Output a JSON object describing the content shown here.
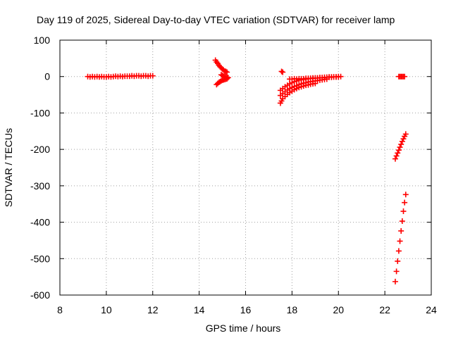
{
  "chart_data": {
    "type": "scatter",
    "title": "Day 119 of 2025, Sidereal Day-to-day VTEC variation (SDTVAR) for receiver lamp",
    "xlabel": "GPS time / hours",
    "ylabel": "SDTVAR / TECUs",
    "xlim": [
      8,
      24
    ],
    "ylim": [
      -600,
      100
    ],
    "xticks": [
      8,
      10,
      12,
      14,
      16,
      18,
      20,
      22,
      24
    ],
    "yticks": [
      100,
      0,
      -100,
      -200,
      -300,
      -400,
      -500,
      -600
    ],
    "grid": true,
    "marker": "plus",
    "series": [
      {
        "name": "SDTVAR",
        "color": "#ff0000",
        "points": [
          [
            9.2,
            0
          ],
          [
            9.3,
            -1
          ],
          [
            9.4,
            0
          ],
          [
            9.5,
            -1
          ],
          [
            9.6,
            0
          ],
          [
            9.7,
            -1
          ],
          [
            9.8,
            0
          ],
          [
            9.9,
            -1
          ],
          [
            10.0,
            -1
          ],
          [
            10.1,
            0
          ],
          [
            10.2,
            -1
          ],
          [
            10.3,
            0
          ],
          [
            10.4,
            1
          ],
          [
            10.5,
            0
          ],
          [
            10.6,
            1
          ],
          [
            10.7,
            0
          ],
          [
            10.8,
            1
          ],
          [
            10.9,
            1
          ],
          [
            11.0,
            1
          ],
          [
            11.1,
            2
          ],
          [
            11.2,
            1
          ],
          [
            11.3,
            2
          ],
          [
            11.4,
            2
          ],
          [
            11.5,
            1
          ],
          [
            11.6,
            2
          ],
          [
            11.7,
            2
          ],
          [
            11.8,
            1
          ],
          [
            11.9,
            2
          ],
          [
            12.0,
            2
          ],
          [
            14.7,
            45
          ],
          [
            14.75,
            40
          ],
          [
            14.8,
            36
          ],
          [
            14.85,
            31
          ],
          [
            14.9,
            27
          ],
          [
            14.95,
            24
          ],
          [
            15.0,
            21
          ],
          [
            15.05,
            18
          ],
          [
            15.1,
            15
          ],
          [
            15.15,
            14
          ],
          [
            15.2,
            12
          ],
          [
            14.75,
            -22
          ],
          [
            14.8,
            -19
          ],
          [
            14.85,
            -16
          ],
          [
            14.9,
            -14
          ],
          [
            14.95,
            -12
          ],
          [
            15.0,
            -10
          ],
          [
            15.05,
            -9
          ],
          [
            15.1,
            -8
          ],
          [
            15.15,
            -7
          ],
          [
            15.2,
            -6
          ],
          [
            14.95,
            5
          ],
          [
            15.0,
            3
          ],
          [
            15.05,
            1
          ],
          [
            15.1,
            0
          ],
          [
            15.15,
            -1
          ],
          [
            15.2,
            -2
          ],
          [
            15.25,
            -3
          ],
          [
            17.55,
            14
          ],
          [
            17.6,
            12
          ],
          [
            17.5,
            -73
          ],
          [
            17.55,
            -67
          ],
          [
            17.6,
            -61
          ],
          [
            17.7,
            -55
          ],
          [
            17.8,
            -49
          ],
          [
            17.9,
            -44
          ],
          [
            18.0,
            -40
          ],
          [
            18.1,
            -36
          ],
          [
            18.2,
            -33
          ],
          [
            18.3,
            -30
          ],
          [
            18.4,
            -28
          ],
          [
            18.5,
            -26
          ],
          [
            18.6,
            -24
          ],
          [
            18.7,
            -23
          ],
          [
            18.8,
            -21
          ],
          [
            18.9,
            -20
          ],
          [
            19.0,
            -19
          ],
          [
            17.5,
            -52
          ],
          [
            17.6,
            -47
          ],
          [
            17.7,
            -42
          ],
          [
            17.8,
            -37
          ],
          [
            17.9,
            -33
          ],
          [
            18.0,
            -30
          ],
          [
            18.1,
            -27
          ],
          [
            18.2,
            -25
          ],
          [
            18.3,
            -22
          ],
          [
            18.4,
            -20
          ],
          [
            18.5,
            -18
          ],
          [
            18.6,
            -17
          ],
          [
            18.7,
            -15
          ],
          [
            18.8,
            -14
          ],
          [
            18.9,
            -13
          ],
          [
            19.0,
            -12
          ],
          [
            19.1,
            -11
          ],
          [
            19.2,
            -10
          ],
          [
            19.3,
            -9
          ],
          [
            19.4,
            -8
          ],
          [
            19.5,
            -7
          ],
          [
            17.5,
            -38
          ],
          [
            17.6,
            -33
          ],
          [
            17.7,
            -28
          ],
          [
            17.8,
            -24
          ],
          [
            17.9,
            -20
          ],
          [
            18.0,
            -17
          ],
          [
            18.1,
            -14
          ],
          [
            18.2,
            -12
          ],
          [
            18.3,
            -10
          ],
          [
            18.4,
            -9
          ],
          [
            18.5,
            -8
          ],
          [
            18.6,
            -7
          ],
          [
            18.7,
            -6
          ],
          [
            18.8,
            -5
          ],
          [
            18.9,
            -5
          ],
          [
            19.0,
            -4
          ],
          [
            19.1,
            -4
          ],
          [
            19.2,
            -3
          ],
          [
            19.3,
            -3
          ],
          [
            19.4,
            -2
          ],
          [
            19.5,
            -2
          ],
          [
            19.6,
            -1
          ],
          [
            19.7,
            -1
          ],
          [
            19.8,
            -1
          ],
          [
            19.9,
            -1
          ],
          [
            20.0,
            0
          ],
          [
            20.1,
            0
          ],
          [
            17.9,
            -7
          ],
          [
            18.0,
            -7
          ],
          [
            18.1,
            -6
          ],
          [
            18.2,
            -7
          ],
          [
            18.3,
            -6
          ],
          [
            18.4,
            -6
          ],
          [
            18.5,
            -6
          ],
          [
            18.6,
            -5
          ],
          [
            18.7,
            -5
          ],
          [
            18.8,
            -5
          ],
          [
            18.9,
            -4
          ],
          [
            19.0,
            -4
          ],
          [
            19.1,
            -4
          ],
          [
            19.2,
            -3
          ],
          [
            19.3,
            -3
          ],
          [
            19.4,
            -3
          ],
          [
            19.5,
            -2
          ],
          [
            19.6,
            -2
          ],
          [
            19.7,
            -2
          ],
          [
            19.8,
            -1
          ],
          [
            19.9,
            -1
          ],
          [
            20.0,
            -1
          ],
          [
            22.6,
            0
          ],
          [
            22.65,
            0
          ],
          [
            22.7,
            0
          ],
          [
            22.75,
            0
          ],
          [
            22.8,
            0
          ],
          [
            22.85,
            0
          ],
          [
            22.45,
            -226
          ],
          [
            22.5,
            -218
          ],
          [
            22.55,
            -210
          ],
          [
            22.6,
            -202
          ],
          [
            22.65,
            -194
          ],
          [
            22.7,
            -186
          ],
          [
            22.75,
            -178
          ],
          [
            22.8,
            -171
          ],
          [
            22.85,
            -164
          ],
          [
            22.9,
            -158
          ],
          [
            22.45,
            -563
          ],
          [
            22.5,
            -535
          ],
          [
            22.55,
            -507
          ],
          [
            22.6,
            -479
          ],
          [
            22.65,
            -452
          ],
          [
            22.7,
            -424
          ],
          [
            22.75,
            -397
          ],
          [
            22.8,
            -370
          ],
          [
            22.85,
            -346
          ],
          [
            22.9,
            -324
          ]
        ]
      }
    ]
  }
}
